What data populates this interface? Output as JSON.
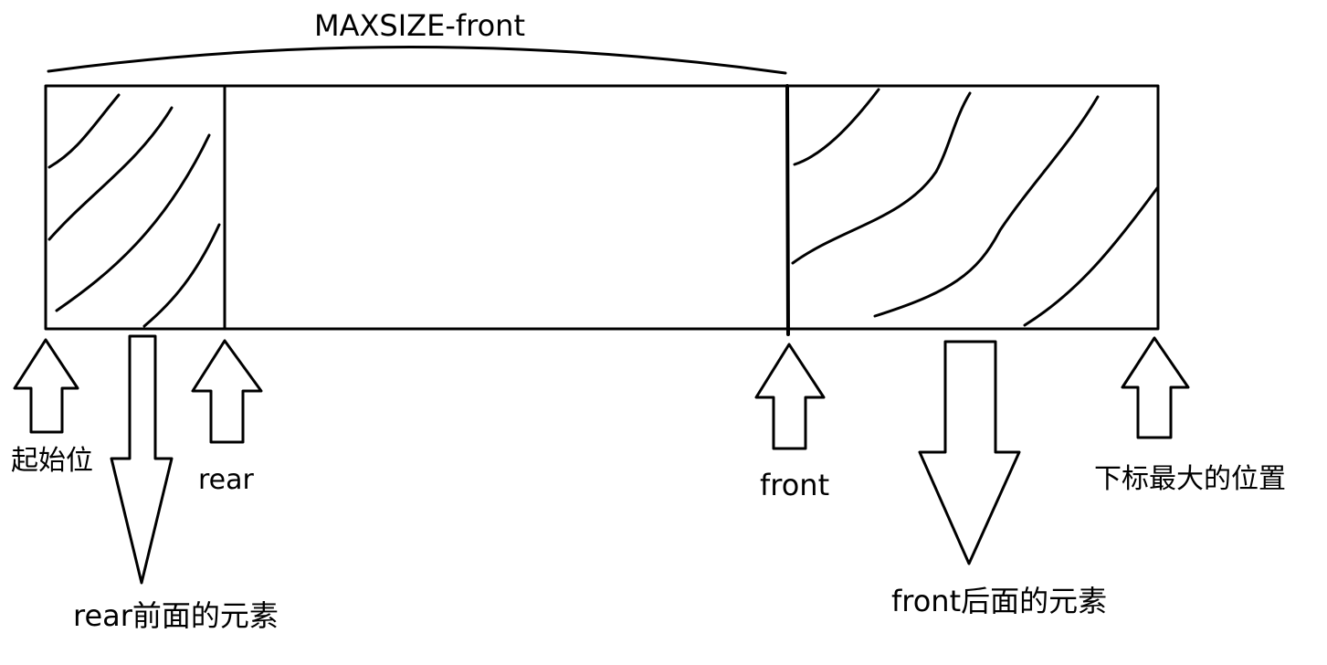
{
  "labels": {
    "span_label": "MAXSIZE-front",
    "start_position": "起始位",
    "rear": "rear",
    "front": "front",
    "max_index_position": "下标最大的位置",
    "elements_before_rear": "rear前面的元素",
    "elements_after_front": "front后面的元素"
  },
  "colors": {
    "stroke": "#000000",
    "background": "#ffffff"
  }
}
